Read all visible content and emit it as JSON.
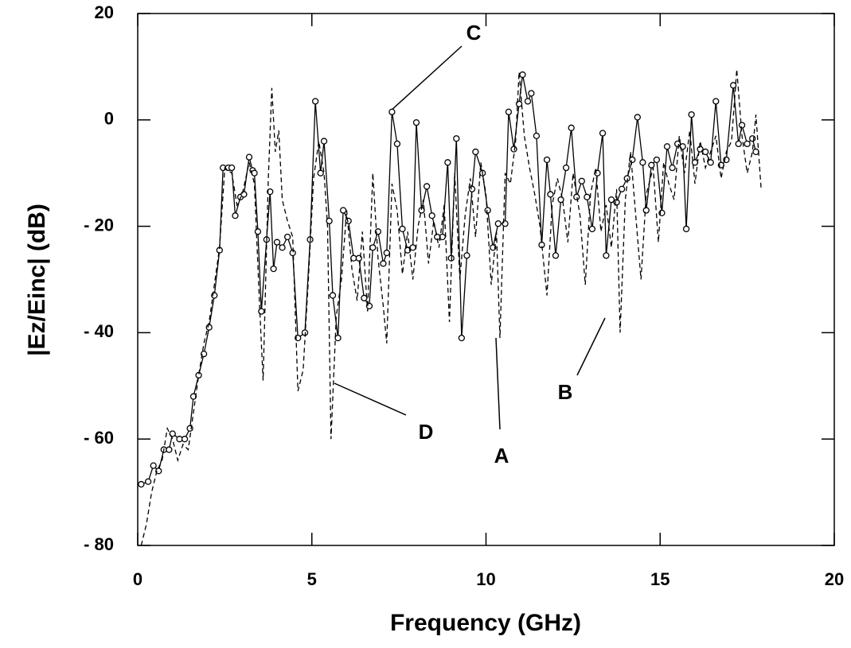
{
  "chart_data": {
    "type": "line",
    "xlabel": "Frequency (GHz)",
    "ylabel": "|Ez/Einc| (dB)",
    "xlim": [
      0,
      20
    ],
    "xticks": [
      0,
      5,
      10,
      15,
      20
    ],
    "ylim": [
      -80,
      20
    ],
    "yticks": [
      {
        "value": -80,
        "label": "- 80"
      },
      {
        "value": -60,
        "label": "- 60"
      },
      {
        "value": -40,
        "label": "- 40"
      },
      {
        "value": -20,
        "label": "- 20"
      },
      0,
      20
    ],
    "annotations": [
      "A",
      "B",
      "C",
      "D"
    ],
    "series": [
      {
        "color": "#000000",
        "line_style": "solid",
        "markers": true,
        "x": [
          0.1,
          0.3,
          0.45,
          0.6,
          0.75,
          0.9,
          1.0,
          1.2,
          1.35,
          1.5,
          1.6,
          1.75,
          1.9,
          2.05,
          2.2,
          2.35,
          2.45,
          2.6,
          2.7,
          2.8,
          2.95,
          3.05,
          3.2,
          3.3,
          3.35,
          3.45,
          3.55,
          3.7,
          3.8,
          3.9,
          4.0,
          4.15,
          4.3,
          4.45,
          4.6,
          4.8,
          4.95,
          5.1,
          5.25,
          5.35,
          5.5,
          5.6,
          5.75,
          5.9,
          6.05,
          6.2,
          6.35,
          6.5,
          6.65,
          6.75,
          6.9,
          7.05,
          7.15,
          7.3,
          7.45,
          7.6,
          7.75,
          7.9,
          8.0,
          8.15,
          8.3,
          8.45,
          8.6,
          8.75,
          8.9,
          9.0,
          9.15,
          9.3,
          9.45,
          9.6,
          9.7,
          9.9,
          10.05,
          10.2,
          10.35,
          10.55,
          10.65,
          10.8,
          10.95,
          11.05,
          11.2,
          11.3,
          11.45,
          11.6,
          11.75,
          11.85,
          12.0,
          12.15,
          12.3,
          12.45,
          12.6,
          12.75,
          12.9,
          13.05,
          13.2,
          13.35,
          13.45,
          13.6,
          13.75,
          13.9,
          14.05,
          14.2,
          14.35,
          14.5,
          14.6,
          14.75,
          14.9,
          15.05,
          15.2,
          15.35,
          15.5,
          15.65,
          15.75,
          15.9,
          16.0,
          16.15,
          16.3,
          16.45,
          16.6,
          16.75,
          16.9,
          17.1,
          17.25,
          17.35,
          17.5,
          17.65,
          17.75
        ],
        "values": [
          -68.5,
          -68,
          -65,
          -66,
          -62,
          -62,
          -59,
          -60,
          -60,
          -58,
          -52,
          -48,
          -44,
          -39,
          -33,
          -24.5,
          -9,
          -9,
          -9,
          -18,
          -14.5,
          -14,
          -7,
          -9.5,
          -10,
          -21,
          -36,
          -22.5,
          -13.5,
          -28,
          -23,
          -24,
          -22,
          -25,
          -41,
          -40,
          -22.5,
          3.5,
          -10,
          -4,
          -19,
          -33,
          -41,
          -17,
          -19,
          -26,
          -26,
          -33.5,
          -35,
          -24,
          -21,
          -27,
          -25,
          1.5,
          -4.5,
          -20.5,
          -24.5,
          -24,
          -0.5,
          -17,
          -12.5,
          -18,
          -22,
          -22,
          -8,
          -26,
          -3.5,
          -41,
          -25.5,
          -13,
          -6,
          -10,
          -17,
          -24,
          -19.5,
          -19.5,
          1.5,
          -5.5,
          3,
          8.5,
          3.5,
          5,
          -3,
          -23.5,
          -7.5,
          -14,
          -25.5,
          -15,
          -9,
          -1.5,
          -14.5,
          -11.5,
          -14.5,
          -20.5,
          -10,
          -2.5,
          -25.5,
          -15,
          -15.5,
          -13,
          -11,
          -7.5,
          0.5,
          -8,
          -17,
          -8.5,
          -7.5,
          -17.5,
          -5,
          -9,
          -4.5,
          -5,
          -20.5,
          1,
          -8,
          -5.5,
          -6,
          -8,
          3.5,
          -8.5,
          -7.5,
          6.5,
          -4.5,
          -1,
          -4.5,
          -3.5,
          -6
        ]
      },
      {
        "color": "#000000",
        "line_style": "dashed",
        "markers": false,
        "x": [
          0.1,
          0.25,
          0.4,
          0.55,
          0.7,
          0.85,
          1.0,
          1.15,
          1.3,
          1.45,
          1.6,
          1.75,
          1.9,
          2.05,
          2.2,
          2.35,
          2.5,
          2.7,
          2.85,
          3.0,
          3.2,
          3.35,
          3.5,
          3.6,
          3.75,
          3.85,
          3.95,
          4.05,
          4.15,
          4.3,
          4.45,
          4.6,
          4.75,
          4.9,
          5.05,
          5.2,
          5.35,
          5.45,
          5.55,
          5.7,
          5.85,
          6.0,
          6.15,
          6.3,
          6.45,
          6.6,
          6.75,
          6.9,
          7.05,
          7.15,
          7.3,
          7.45,
          7.6,
          7.75,
          7.9,
          8.05,
          8.2,
          8.35,
          8.5,
          8.65,
          8.8,
          8.95,
          9.1,
          9.25,
          9.4,
          9.55,
          9.7,
          9.85,
          10.0,
          10.15,
          10.3,
          10.4,
          10.55,
          10.7,
          10.85,
          10.95,
          11.1,
          11.25,
          11.4,
          11.55,
          11.75,
          11.9,
          12.05,
          12.2,
          12.35,
          12.5,
          12.7,
          12.85,
          13.0,
          13.15,
          13.3,
          13.45,
          13.6,
          13.75,
          13.85,
          14.0,
          14.15,
          14.3,
          14.45,
          14.6,
          14.8,
          14.95,
          15.1,
          15.25,
          15.4,
          15.55,
          15.7,
          15.85,
          16.0,
          16.15,
          16.3,
          16.45,
          16.6,
          16.75,
          16.9,
          17.05,
          17.2,
          17.35,
          17.5,
          17.65,
          17.75,
          17.9
        ],
        "values": [
          -80,
          -76,
          -70,
          -66,
          -64,
          -58,
          -60,
          -64,
          -61,
          -62,
          -55,
          -48,
          -42,
          -38,
          -31,
          -24,
          -9,
          -10,
          -16,
          -14,
          -8,
          -12,
          -35,
          -49,
          -11,
          6,
          -6,
          -2,
          -15,
          -19,
          -22,
          -51,
          -47,
          -30,
          -11,
          -4,
          -10,
          -20,
          -60,
          -37,
          -30,
          -17,
          -28,
          -34,
          -21,
          -36,
          -10,
          -26,
          -35,
          -42,
          -12,
          -17,
          -29,
          -21,
          -30,
          -20,
          -15,
          -27,
          -19,
          -24,
          -16,
          -38,
          -10,
          -30,
          -18,
          -11,
          -22,
          -8,
          -14,
          -31,
          -21,
          -41,
          -10,
          -12,
          -4,
          9,
          -3,
          -9,
          -14,
          -20,
          -33,
          -16,
          -11,
          -15,
          -23,
          -10,
          -18,
          -31,
          -14,
          -9,
          -21,
          -16,
          -24,
          -13,
          -40,
          -15,
          -6,
          -18,
          -30,
          -14,
          -9,
          -23,
          -8,
          -12,
          -15,
          -3,
          -10,
          -2,
          -12,
          -4,
          -9,
          -6,
          -3,
          -11,
          -6,
          -4,
          9.5,
          -3,
          -10,
          -6,
          1,
          -13
        ]
      }
    ]
  }
}
